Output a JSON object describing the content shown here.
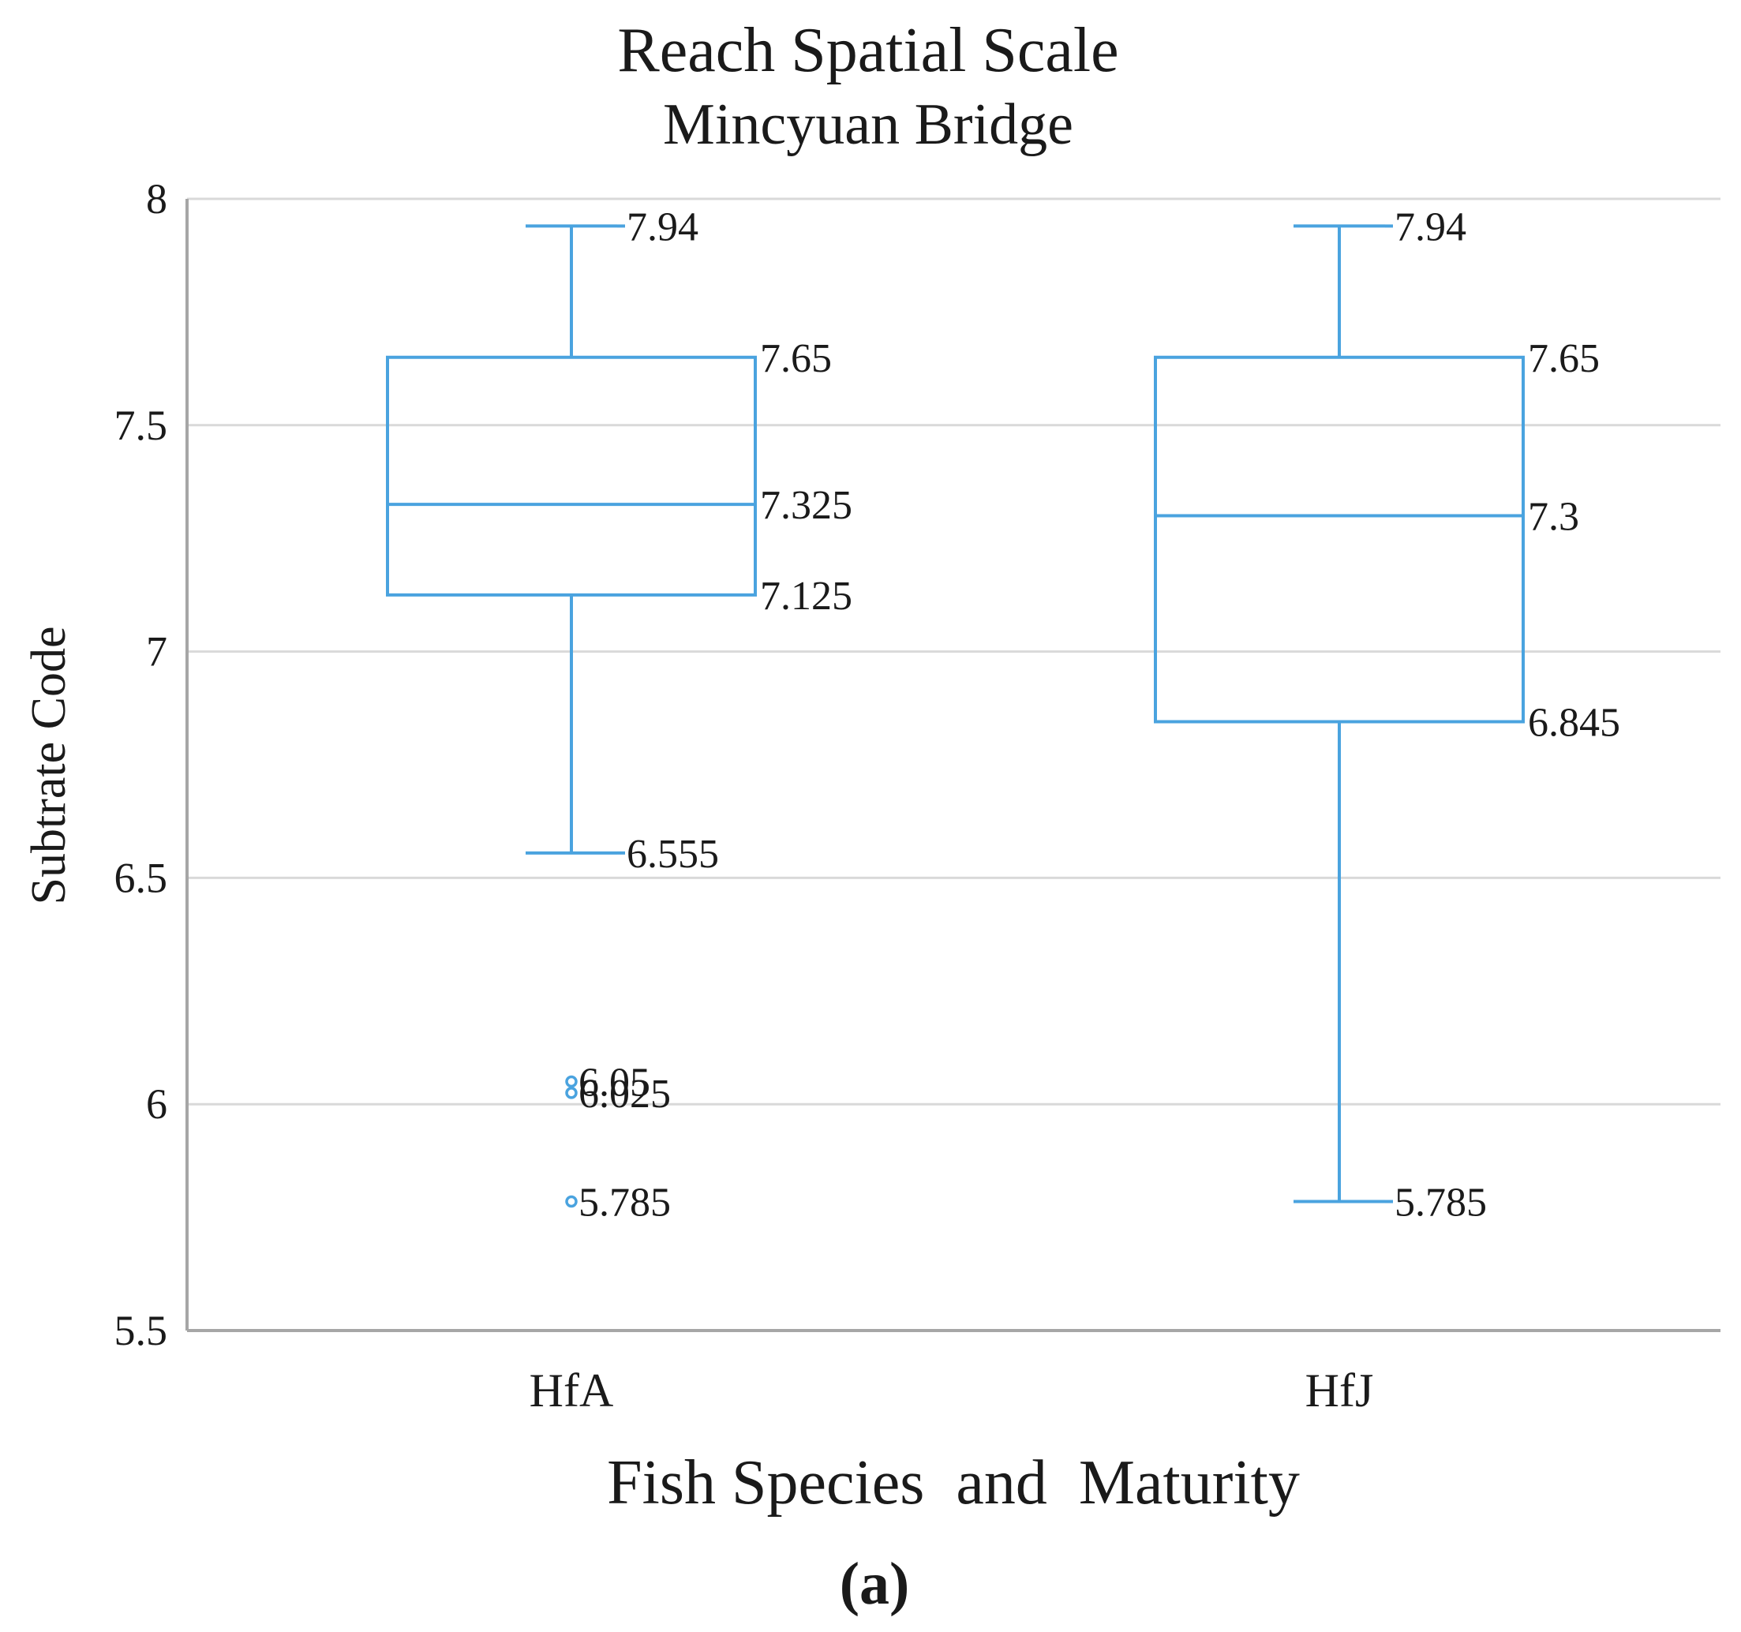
{
  "chart_data": {
    "type": "box",
    "title": "Reach Spatial Scale",
    "subtitle": "Mincyuan Bridge",
    "xlabel": "Fish Species  and  Maturity",
    "ylabel": "Subtrate Code",
    "panel_label": "(a)",
    "ylim": [
      5.5,
      8
    ],
    "yticks": [
      5.5,
      6,
      6.5,
      7,
      7.5,
      8
    ],
    "ytick_labels": [
      "5.5",
      "6",
      "6.5",
      "7",
      "7.5",
      "8"
    ],
    "grid": true,
    "box_color": "#4aa3df",
    "categories": [
      "HfA",
      "HfJ"
    ],
    "boxes": [
      {
        "name": "HfA",
        "whisker_high": 7.94,
        "q3": 7.65,
        "median": 7.325,
        "q1": 7.125,
        "whisker_low": 6.555,
        "labels": {
          "whisker_high": "7.94",
          "q3": "7.65",
          "median": "7.325",
          "q1": "7.125",
          "whisker_low": "6.555"
        },
        "outliers": [
          {
            "value": 6.05,
            "label": "6.05"
          },
          {
            "value": 6.025,
            "label": "6.025"
          },
          {
            "value": 5.785,
            "label": "5.785"
          }
        ]
      },
      {
        "name": "HfJ",
        "whisker_high": 7.94,
        "q3": 7.65,
        "median": 7.3,
        "q1": 6.845,
        "whisker_low": 5.785,
        "labels": {
          "whisker_high": "7.94",
          "q3": "7.65",
          "median": "7.3",
          "q1": "6.845",
          "whisker_low": "5.785"
        },
        "outliers": []
      }
    ]
  }
}
